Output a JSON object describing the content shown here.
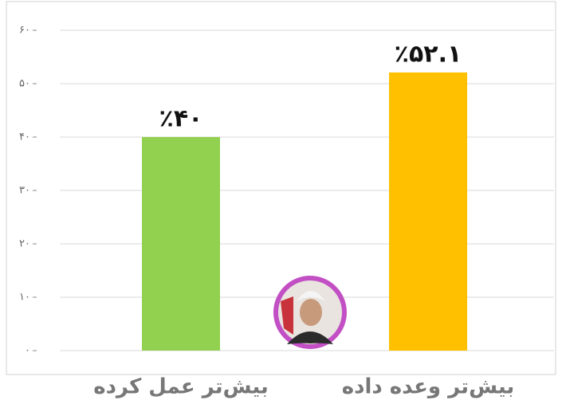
{
  "chart_data": {
    "type": "bar",
    "categories": [
      "بیش‌تر عمل کرده",
      "بیش‌تر وعده داده"
    ],
    "values": [
      40,
      52.1
    ],
    "value_labels": [
      "٪۴۰",
      "٪۵۲.۱"
    ],
    "colors": [
      "#92d050",
      "#ffc000"
    ],
    "ylim": [
      0,
      60
    ],
    "yticks": [
      {
        "value": 0,
        "label": "۰"
      },
      {
        "value": 10,
        "label": "۱۰"
      },
      {
        "value": 20,
        "label": "۲۰"
      },
      {
        "value": 30,
        "label": "۳۰"
      },
      {
        "value": 40,
        "label": "۴۰"
      },
      {
        "value": 50,
        "label": "۵۰"
      },
      {
        "value": 60,
        "label": "۶۰"
      }
    ],
    "grid": true
  }
}
